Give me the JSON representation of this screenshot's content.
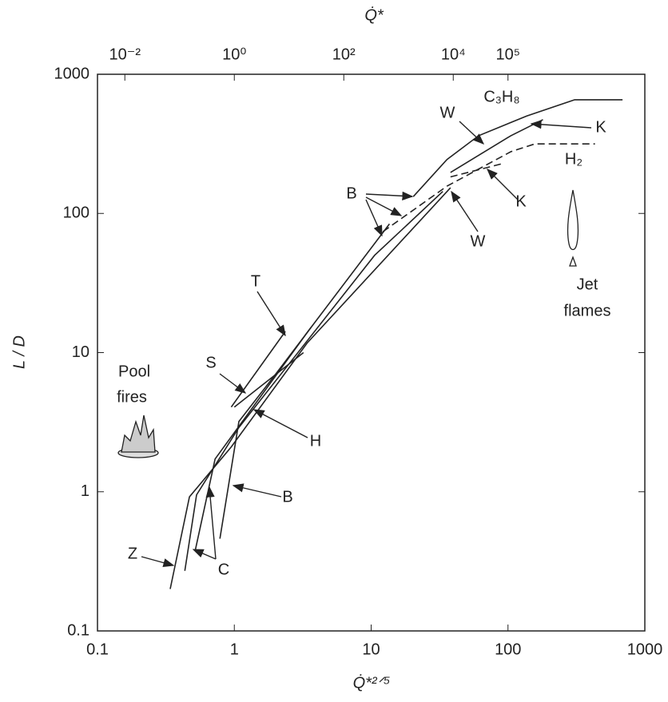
{
  "chart_data": {
    "type": "line",
    "x_label": "Q̇*²ᐟ⁵",
    "y_label": "L / D",
    "x2_label": "Q̇*",
    "xscale": "log",
    "yscale": "log",
    "xlim": [
      0.1,
      1000
    ],
    "ylim": [
      0.1,
      1000
    ],
    "xticks": [
      0.1,
      1,
      10,
      100,
      1000
    ],
    "yticks": [
      0.1,
      1,
      10,
      100,
      1000
    ],
    "x2ticks": [
      {
        "value": 0.01,
        "label": "10⁻²"
      },
      {
        "value": 1,
        "label": "10⁰"
      },
      {
        "value": 100,
        "label": "10²"
      },
      {
        "value": 10000,
        "label": "10⁴"
      },
      {
        "value": 100000,
        "label": "10⁵"
      }
    ],
    "series": [
      {
        "color": "#222222",
        "dash": false,
        "x": [
          20.3,
          35.8,
          61,
          137,
          307,
          687
        ],
        "values": [
          132,
          244,
          362,
          502,
          656,
          656
        ]
      },
      {
        "color": "#222222",
        "dash": false,
        "x": [
          38,
          105,
          180
        ],
        "values": [
          197,
          362,
          472
        ]
      },
      {
        "color": "#222222",
        "dash": true,
        "x": [
          12.2,
          35.8,
          105,
          157,
          432
        ],
        "values": [
          74,
          157,
          278,
          316,
          316
        ]
      },
      {
        "color": "#222222",
        "dash": true,
        "x": [
          38,
          91
        ],
        "values": [
          183,
          228
        ]
      },
      {
        "color": "#222222",
        "dash": false,
        "x": [
          0.34,
          0.47,
          0.95,
          3.4,
          38
        ],
        "values": [
          0.2,
          0.92,
          2.1,
          11.7,
          153
        ]
      },
      {
        "color": "#222222",
        "dash": false,
        "x": [
          0.435,
          0.53,
          1.08,
          10.6,
          33.4
        ],
        "values": [
          0.27,
          0.95,
          2.9,
          50,
          144
        ]
      },
      {
        "color": "#222222",
        "dash": false,
        "x": [
          0.517,
          0.724,
          3.64
        ],
        "values": [
          0.376,
          1.72,
          15.2
        ]
      },
      {
        "color": "#222222",
        "dash": false,
        "x": [
          0.785,
          1.08,
          1.98,
          13.6
        ],
        "values": [
          0.46,
          3.2,
          6.9,
          84
        ]
      },
      {
        "color": "#222222",
        "dash": false,
        "x": [
          0.95,
          2.36
        ],
        "values": [
          4.06,
          14.2
        ]
      },
      {
        "color": "#222222",
        "dash": false,
        "x": [
          1.0,
          3.2
        ],
        "values": [
          4.06,
          10
        ]
      }
    ],
    "annotations": [
      "W",
      "C₃H₈",
      "K",
      "H₂",
      "B",
      "W",
      "K",
      "T",
      "S",
      "H",
      "B",
      "Z",
      "C",
      "Pool",
      "fires",
      "Jet",
      "flames"
    ]
  }
}
